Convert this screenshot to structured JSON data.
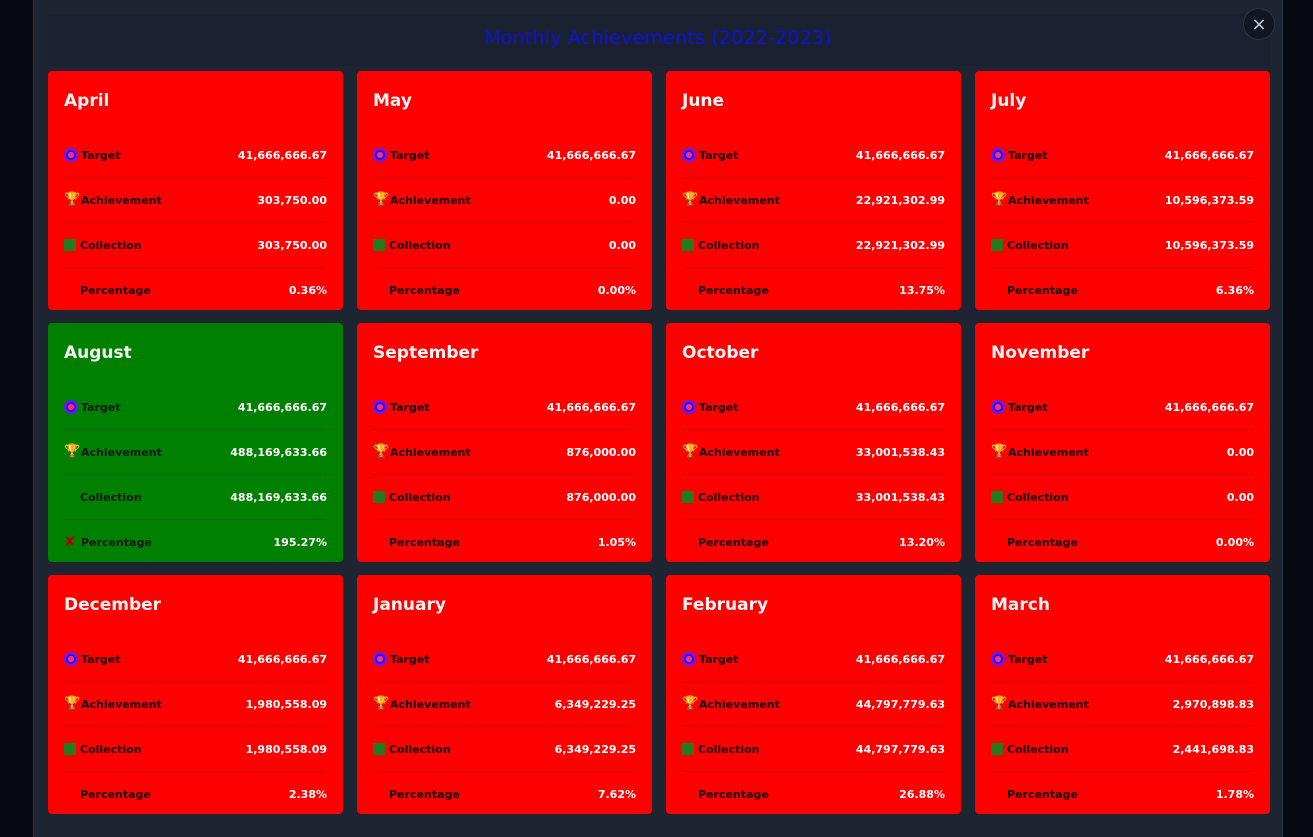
{
  "modal": {
    "title": "Monthly Achievements (2022-2023)",
    "close_label": "×"
  },
  "labels": {
    "target": "Target",
    "achievement": "Achievement",
    "collection": "Collection",
    "percentage": "Percentage"
  },
  "colors": {
    "below_target": "#ff0000",
    "above_target": "#008000",
    "title": "#1010d8"
  },
  "months": [
    {
      "name": "April",
      "target": "41,666,666.67",
      "achievement": "303,750.00",
      "collection": "303,750.00",
      "percentage": "0.36%"
    },
    {
      "name": "May",
      "target": "41,666,666.67",
      "achievement": "0.00",
      "collection": "0.00",
      "percentage": "0.00%"
    },
    {
      "name": "June",
      "target": "41,666,666.67",
      "achievement": "22,921,302.99",
      "collection": "22,921,302.99",
      "percentage": "13.75%"
    },
    {
      "name": "July",
      "target": "41,666,666.67",
      "achievement": "10,596,373.59",
      "collection": "10,596,373.59",
      "percentage": "6.36%"
    },
    {
      "name": "August",
      "target": "41,666,666.67",
      "achievement": "488,169,633.66",
      "collection": "488,169,633.66",
      "percentage": "195.27%"
    },
    {
      "name": "September",
      "target": "41,666,666.67",
      "achievement": "876,000.00",
      "collection": "876,000.00",
      "percentage": "1.05%"
    },
    {
      "name": "October",
      "target": "41,666,666.67",
      "achievement": "33,001,538.43",
      "collection": "33,001,538.43",
      "percentage": "13.20%"
    },
    {
      "name": "November",
      "target": "41,666,666.67",
      "achievement": "0.00",
      "collection": "0.00",
      "percentage": "0.00%"
    },
    {
      "name": "December",
      "target": "41,666,666.67",
      "achievement": "1,980,558.09",
      "collection": "1,980,558.09",
      "percentage": "2.38%"
    },
    {
      "name": "January",
      "target": "41,666,666.67",
      "achievement": "6,349,229.25",
      "collection": "6,349,229.25",
      "percentage": "7.62%"
    },
    {
      "name": "February",
      "target": "41,666,666.67",
      "achievement": "44,797,779.63",
      "collection": "44,797,779.63",
      "percentage": "26.88%"
    },
    {
      "name": "March",
      "target": "41,666,666.67",
      "achievement": "2,970,898.83",
      "collection": "2,441,698.83",
      "percentage": "1.78%"
    }
  ]
}
